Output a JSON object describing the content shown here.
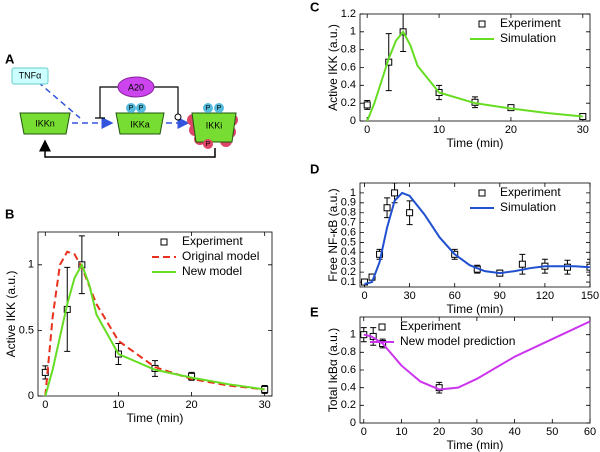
{
  "diagram": {
    "panel": "A",
    "nodes": [
      "TNFα",
      "A20",
      "IKKn",
      "IKKa",
      "IKKi"
    ],
    "phospho": "P"
  },
  "chart_data": [
    {
      "type": "line",
      "panel": "B",
      "xlabel": "Time (min)",
      "ylabel": "Active IKK (a.u.)",
      "xlim": [
        -1,
        31
      ],
      "ylim": [
        0,
        1.25
      ],
      "xticks": [
        0,
        10,
        20,
        30
      ],
      "yticks": [
        0,
        0.5,
        1
      ],
      "legend": "upper right",
      "series": [
        {
          "name": "Experiment",
          "color": "#000000",
          "marker": "square",
          "x": [
            0,
            3,
            5,
            10,
            15,
            20,
            30
          ],
          "values": [
            0.18,
            0.66,
            1.0,
            0.32,
            0.21,
            0.15,
            0.05
          ],
          "errors": [
            0.05,
            0.32,
            0.22,
            0.08,
            0.06,
            0.03,
            0.03
          ]
        },
        {
          "name": "Original model",
          "color": "#e8301c",
          "line": "dashed",
          "x": [
            0,
            1,
            2,
            3,
            4,
            5,
            7,
            10,
            15,
            20,
            25,
            30
          ],
          "values": [
            0,
            0.6,
            1.0,
            1.1,
            1.08,
            0.98,
            0.7,
            0.42,
            0.22,
            0.13,
            0.08,
            0.05
          ]
        },
        {
          "name": "New model",
          "color": "#66dd22",
          "line": "solid",
          "x": [
            0,
            1,
            2,
            3,
            4,
            5,
            6,
            7,
            10,
            15,
            20,
            25,
            30
          ],
          "values": [
            0,
            0.2,
            0.45,
            0.7,
            0.9,
            1.0,
            0.85,
            0.62,
            0.32,
            0.2,
            0.14,
            0.09,
            0.05
          ]
        }
      ]
    },
    {
      "type": "line",
      "panel": "C",
      "xlabel": "Time (min)",
      "ylabel": "Active IKK (a.u.)",
      "xlim": [
        -1,
        31
      ],
      "ylim": [
        0,
        1.2
      ],
      "xticks": [
        0,
        10,
        20,
        30
      ],
      "yticks": [
        0,
        0.2,
        0.4,
        0.6,
        0.8,
        1,
        1.2
      ],
      "legend": "upper right",
      "series": [
        {
          "name": "Experiment",
          "color": "#000000",
          "marker": "square",
          "x": [
            0,
            3,
            5,
            10,
            15,
            20,
            30
          ],
          "values": [
            0.18,
            0.66,
            1.0,
            0.32,
            0.21,
            0.15,
            0.05
          ],
          "errors": [
            0.05,
            0.32,
            0.22,
            0.08,
            0.06,
            0.03,
            0.03
          ]
        },
        {
          "name": "Simulation",
          "color": "#66dd22",
          "line": "solid",
          "x": [
            0,
            1,
            2,
            3,
            4,
            5,
            6,
            7,
            10,
            15,
            20,
            25,
            30
          ],
          "values": [
            0,
            0.2,
            0.45,
            0.7,
            0.9,
            1.0,
            0.85,
            0.62,
            0.32,
            0.2,
            0.14,
            0.09,
            0.05
          ]
        }
      ]
    },
    {
      "type": "line",
      "panel": "D",
      "xlabel": "Time (min)",
      "ylabel": "Free NF-κB (a.u.)",
      "xlim": [
        -3,
        150
      ],
      "ylim": [
        0.05,
        1.1
      ],
      "xticks": [
        0,
        30,
        60,
        90,
        120,
        150
      ],
      "yticks": [
        0.1,
        0.2,
        0.3,
        0.4,
        0.5,
        0.6,
        0.7,
        0.8,
        0.9,
        1
      ],
      "legend": "upper right",
      "series": [
        {
          "name": "Experiment",
          "color": "#000000",
          "marker": "square",
          "x": [
            0,
            5,
            10,
            15,
            20,
            30,
            60,
            75,
            90,
            105,
            120,
            135,
            150
          ],
          "values": [
            0.1,
            0.15,
            0.38,
            0.85,
            1.0,
            0.8,
            0.38,
            0.23,
            0.19,
            0.28,
            0.26,
            0.25,
            0.25
          ],
          "errors": [
            0.03,
            0.03,
            0.05,
            0.1,
            0.1,
            0.12,
            0.05,
            0.04,
            0.03,
            0.1,
            0.07,
            0.07,
            0.08
          ]
        },
        {
          "name": "Simulation",
          "color": "#2050d0",
          "line": "solid",
          "x": [
            0,
            5,
            10,
            15,
            20,
            25,
            30,
            40,
            50,
            60,
            70,
            80,
            90,
            100,
            110,
            120,
            130,
            140,
            150
          ],
          "values": [
            0.08,
            0.1,
            0.3,
            0.65,
            0.92,
            1.0,
            0.97,
            0.78,
            0.55,
            0.38,
            0.27,
            0.21,
            0.19,
            0.21,
            0.24,
            0.26,
            0.26,
            0.26,
            0.25
          ]
        }
      ]
    },
    {
      "type": "line",
      "panel": "E",
      "xlabel": "Time (min)",
      "ylabel": "Total IκBα (a.u.)",
      "xlim": [
        -1,
        60
      ],
      "ylim": [
        0,
        1.2
      ],
      "xticks": [
        0,
        10,
        20,
        30,
        40,
        50,
        60
      ],
      "yticks": [
        0,
        0.2,
        0.4,
        0.6,
        0.8,
        1
      ],
      "legend": "upper left",
      "series": [
        {
          "name": "Experiment",
          "color": "#000000",
          "marker": "square",
          "x": [
            0,
            2.5,
            5,
            20
          ],
          "values": [
            1.0,
            0.98,
            0.9,
            0.4
          ],
          "errors": [
            0.08,
            0.1,
            0.05,
            0.06
          ]
        },
        {
          "name": "New model prediction",
          "color": "#cc33ee",
          "line": "solid",
          "x": [
            0,
            2,
            5,
            10,
            15,
            20,
            25,
            30,
            40,
            50,
            60
          ],
          "values": [
            1,
            0.98,
            0.9,
            0.65,
            0.47,
            0.38,
            0.4,
            0.5,
            0.75,
            0.95,
            1.15
          ]
        }
      ]
    }
  ]
}
